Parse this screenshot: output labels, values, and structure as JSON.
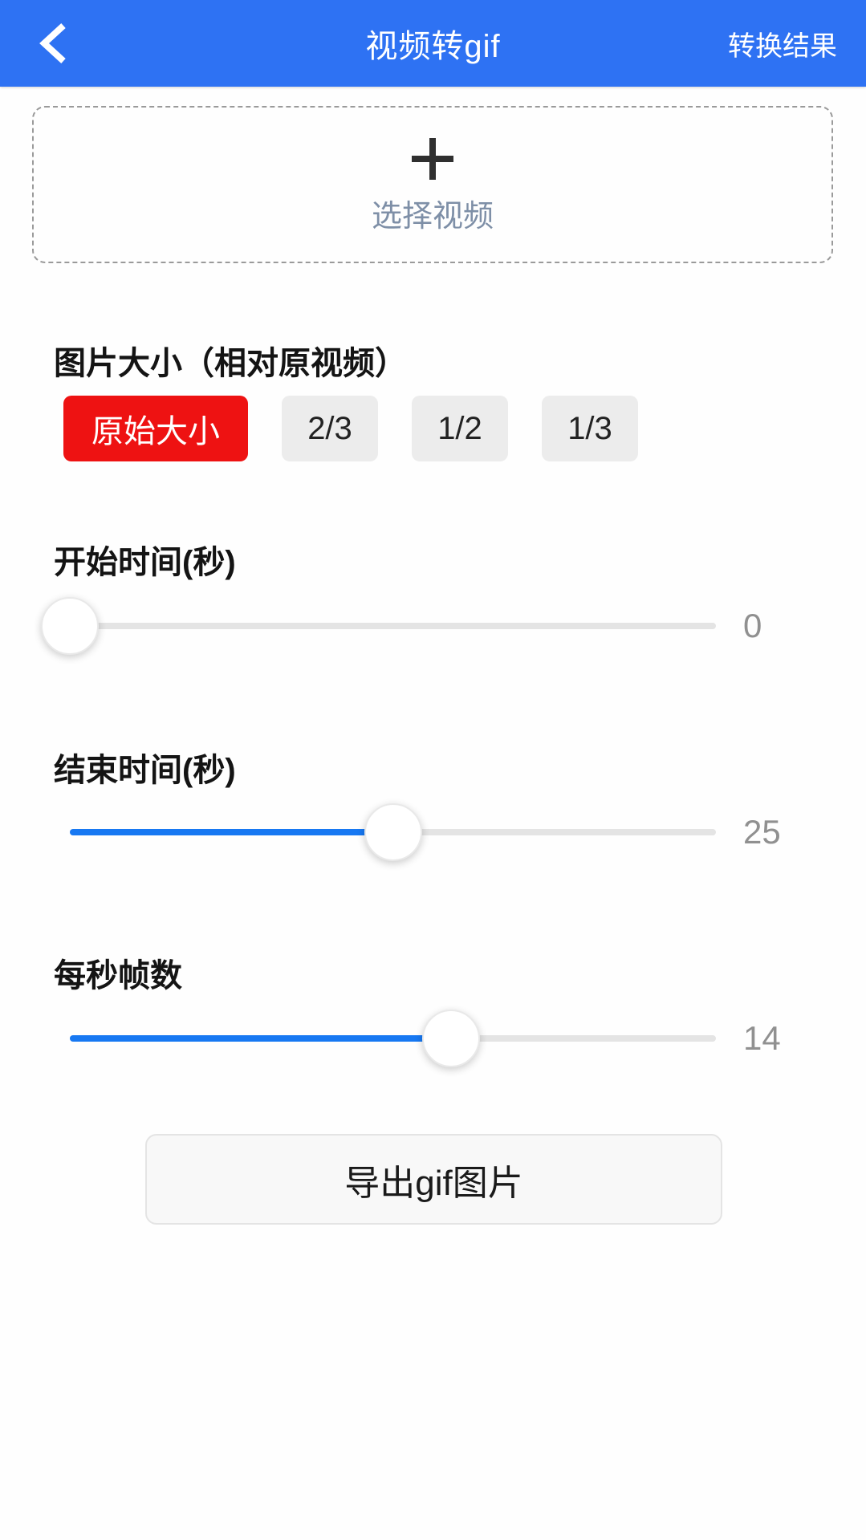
{
  "header": {
    "title": "视频转gif",
    "back_icon": "chevron-left",
    "action_label": "转换结果"
  },
  "upload": {
    "plus_icon": "plus",
    "label": "选择视频"
  },
  "size_section": {
    "heading": "图片大小（相对原视频）",
    "options": [
      {
        "label": "原始大小",
        "selected": true
      },
      {
        "label": "2/3",
        "selected": false
      },
      {
        "label": "1/2",
        "selected": false
      },
      {
        "label": "1/3",
        "selected": false
      }
    ]
  },
  "sliders": [
    {
      "label": "开始时间(秒)",
      "value": "0",
      "percent": 0
    },
    {
      "label": "结束时间(秒)",
      "value": "25",
      "percent": 50
    },
    {
      "label": "每秒帧数",
      "value": "14",
      "percent": 59
    }
  ],
  "export_button": {
    "label": "导出gif图片"
  },
  "colors": {
    "header_bg": "#2e72f3",
    "accent_red": "#ee1212",
    "slider_fill": "#1778f2",
    "upload_label_color": "#7e8fa7"
  }
}
